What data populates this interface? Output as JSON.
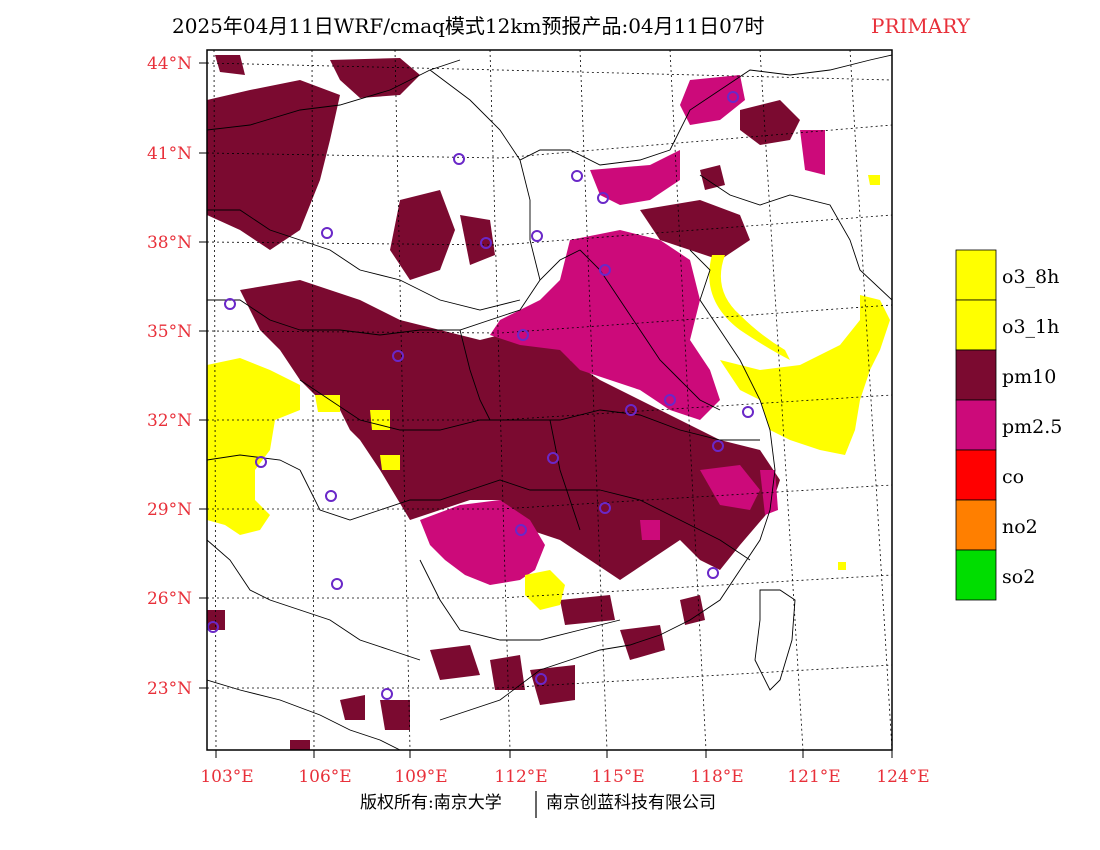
{
  "header": {
    "title": "2025年04月11日WRF/cmaq模式12km预报产品:04月11日07时",
    "badge": "PRIMARY"
  },
  "axes": {
    "lat_labels": [
      "44°N",
      "41°N",
      "38°N",
      "35°N",
      "32°N",
      "29°N",
      "26°N",
      "23°N"
    ],
    "lon_labels": [
      "103°E",
      "106°E",
      "109°E",
      "112°E",
      "115°E",
      "118°E",
      "121°E",
      "124°E"
    ]
  },
  "legend": {
    "items": [
      {
        "label": "o3_8h",
        "color": "#ffff00"
      },
      {
        "label": "o3_1h",
        "color": "#ffff00"
      },
      {
        "label": "pm10",
        "color": "#7b0a30"
      },
      {
        "label": "pm2.5",
        "color": "#cc0a7a"
      },
      {
        "label": "co",
        "color": "#ff0000"
      },
      {
        "label": "no2",
        "color": "#ff7f00"
      },
      {
        "label": "so2",
        "color": "#00dd00"
      }
    ]
  },
  "footer": {
    "left": "版权所有:南京大学",
    "right": "南京创蓝科技有限公司"
  },
  "colors": {
    "pm10": "#7b0a30",
    "pm25": "#cc0a7a",
    "o3": "#ffff00",
    "station_marker": "#6a28c8",
    "axis_label": "#e8303a"
  }
}
